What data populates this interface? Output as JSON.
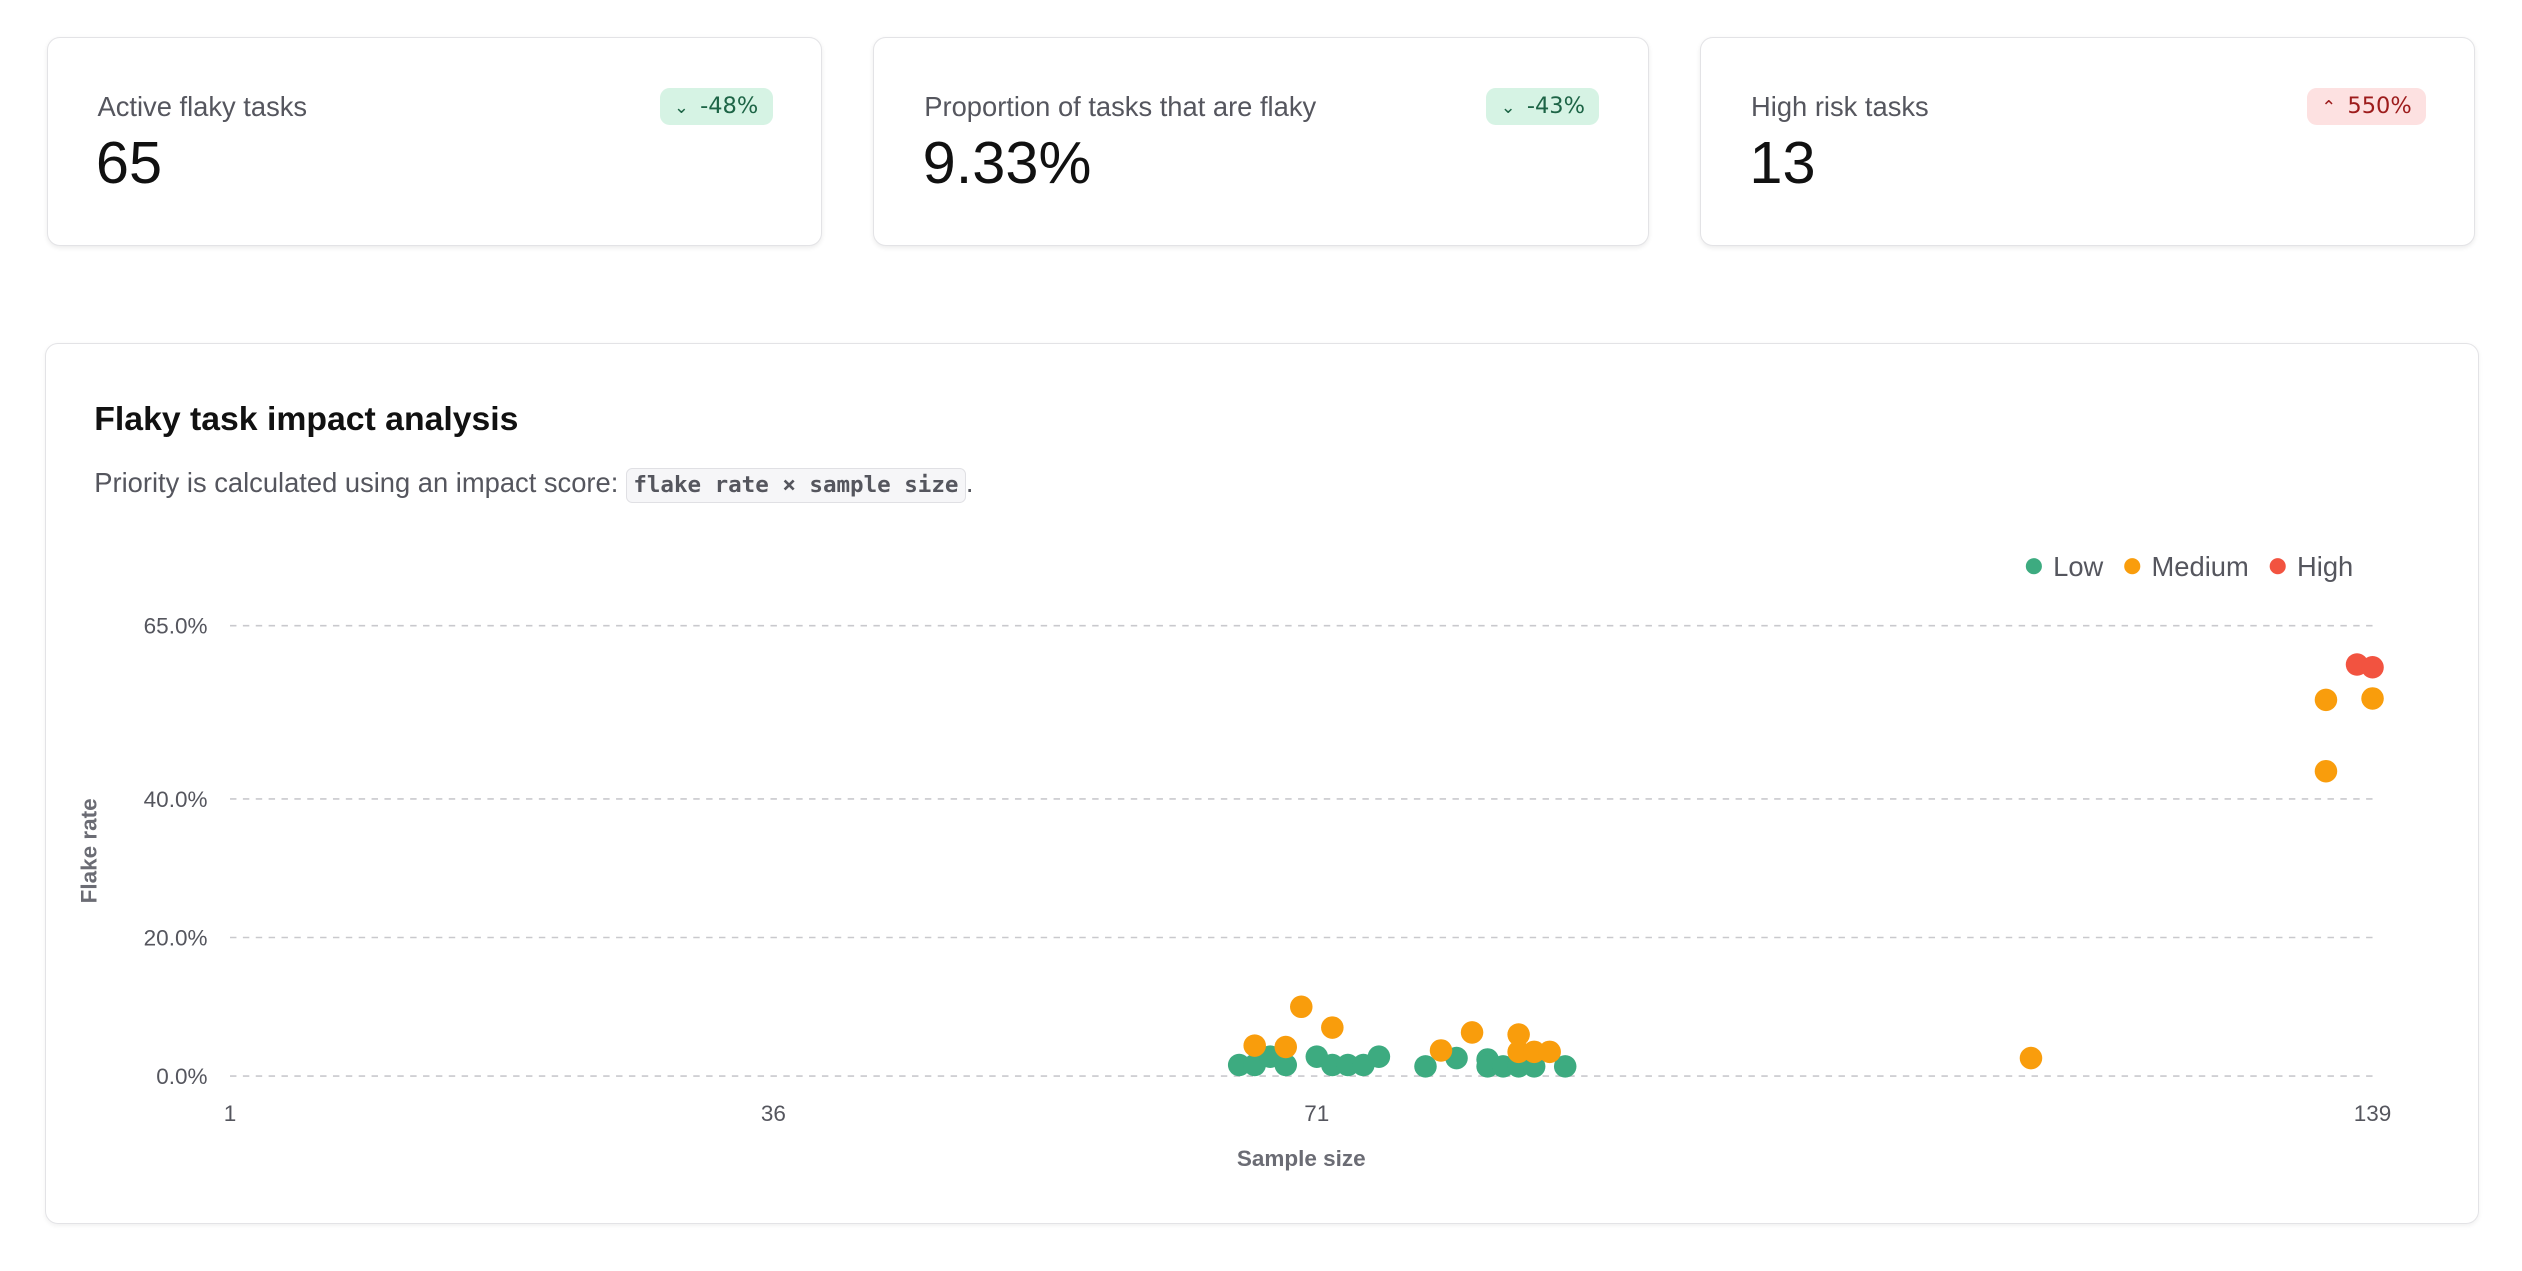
{
  "kpis": [
    {
      "label": "Active flaky tasks",
      "value": "65",
      "change": "-48%",
      "direction": "down",
      "icon": "chevron-down-icon"
    },
    {
      "label": "Proportion of tasks that are flaky",
      "value": "9.33%",
      "change": "-43%",
      "direction": "down",
      "icon": "chevron-down-icon"
    },
    {
      "label": "High risk tasks",
      "value": "13",
      "change": "550%",
      "direction": "up",
      "icon": "chevron-up-icon"
    }
  ],
  "panel": {
    "title": "Flaky task impact analysis",
    "subtitle_prefix": "Priority is calculated using an impact score: ",
    "formula": "flake rate × sample size",
    "subtitle_suffix": "."
  },
  "chart_data": {
    "type": "scatter",
    "xlabel": "Sample size",
    "ylabel": "Flake rate",
    "xlim": [
      1,
      139
    ],
    "ylim": [
      0,
      65
    ],
    "x_ticks": [
      "1",
      "36",
      "71",
      "139"
    ],
    "x_tick_values": [
      1,
      36,
      71,
      139
    ],
    "y_ticks": [
      "0.0%",
      "20.0%",
      "40.0%",
      "65.0%"
    ],
    "y_tick_values": [
      0,
      20,
      40,
      65
    ],
    "grid": true,
    "legend": "top-right",
    "series": [
      {
        "name": "Low",
        "color": "#3dab80",
        "points": [
          [
            66,
            1.6
          ],
          [
            67,
            1.6
          ],
          [
            68,
            2.8
          ],
          [
            69,
            1.6
          ],
          [
            71,
            2.8
          ],
          [
            72,
            1.6
          ],
          [
            73,
            1.6
          ],
          [
            74,
            1.6
          ],
          [
            75,
            2.8
          ],
          [
            78,
            1.4
          ],
          [
            80,
            2.6
          ],
          [
            82,
            2.4
          ],
          [
            82,
            1.4
          ],
          [
            83,
            1.4
          ],
          [
            84,
            1.4
          ],
          [
            85,
            1.4
          ],
          [
            87,
            1.4
          ]
        ]
      },
      {
        "name": "Medium",
        "color": "#f99d0c",
        "points": [
          [
            67,
            4.4
          ],
          [
            69,
            4.2
          ],
          [
            70,
            10
          ],
          [
            72,
            7
          ],
          [
            79,
            3.7
          ],
          [
            81,
            6.3
          ],
          [
            84,
            6
          ],
          [
            84,
            3.5
          ],
          [
            85,
            3.5
          ],
          [
            86,
            3.5
          ],
          [
            117,
            2.6
          ],
          [
            136,
            44
          ],
          [
            136,
            54.3
          ],
          [
            139,
            54.5
          ]
        ]
      },
      {
        "name": "High",
        "color": "#f25340",
        "points": [
          [
            138,
            59.4
          ],
          [
            139,
            59
          ]
        ]
      }
    ]
  }
}
